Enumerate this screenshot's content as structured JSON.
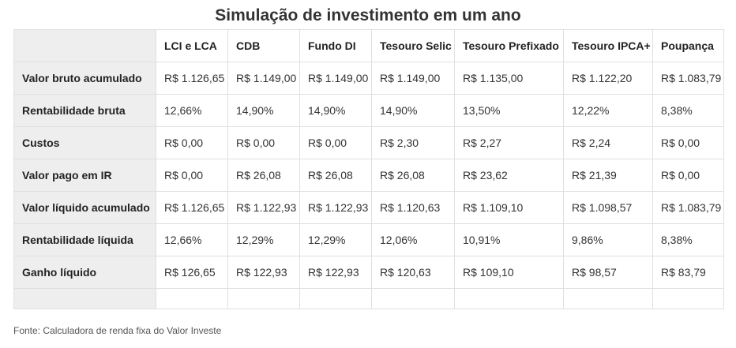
{
  "title": "Simulação de investimento em um ano",
  "table": {
    "columns": [
      "LCI e LCA",
      "CDB",
      "Fundo DI",
      "Tesouro Selic",
      "Tesouro Prefixado",
      "Tesouro IPCA+",
      "Poupança"
    ],
    "rows": [
      {
        "label": "Valor bruto acumulado",
        "values": [
          "R$ 1.126,65",
          "R$ 1.149,00",
          "R$ 1.149,00",
          "R$ 1.149,00",
          "R$ 1.135,00",
          "R$ 1.122,20",
          "R$ 1.083,79"
        ]
      },
      {
        "label": "Rentabilidade bruta",
        "values": [
          "12,66%",
          "14,90%",
          "14,90%",
          "14,90%",
          "13,50%",
          "12,22%",
          "8,38%"
        ]
      },
      {
        "label": "Custos",
        "values": [
          "R$ 0,00",
          "R$ 0,00",
          "R$ 0,00",
          "R$ 2,30",
          "R$ 2,27",
          "R$ 2,24",
          "R$ 0,00"
        ]
      },
      {
        "label": "Valor pago em IR",
        "values": [
          "R$ 0,00",
          "R$ 26,08",
          "R$ 26,08",
          "R$ 26,08",
          "R$ 23,62",
          "R$ 21,39",
          "R$ 0,00"
        ]
      },
      {
        "label": "Valor líquido acumulado",
        "values": [
          "R$ 1.126,65",
          "R$ 1.122,93",
          "R$ 1.122,93",
          "R$ 1.120,63",
          "R$ 1.109,10",
          "R$ 1.098,57",
          "R$ 1.083,79"
        ]
      },
      {
        "label": "Rentabilidade líquida",
        "values": [
          "12,66%",
          "12,29%",
          "12,29%",
          "12,06%",
          "10,91%",
          "9,86%",
          "8,38%"
        ]
      },
      {
        "label": "Ganho líquido",
        "values": [
          "R$ 126,65",
          "R$ 122,93",
          "R$ 122,93",
          "R$ 120,63",
          "R$ 109,10",
          "R$ 98,57",
          "R$ 83,79"
        ]
      }
    ]
  },
  "source": "Fonte: Calculadora de renda fixa do Valor Investe"
}
